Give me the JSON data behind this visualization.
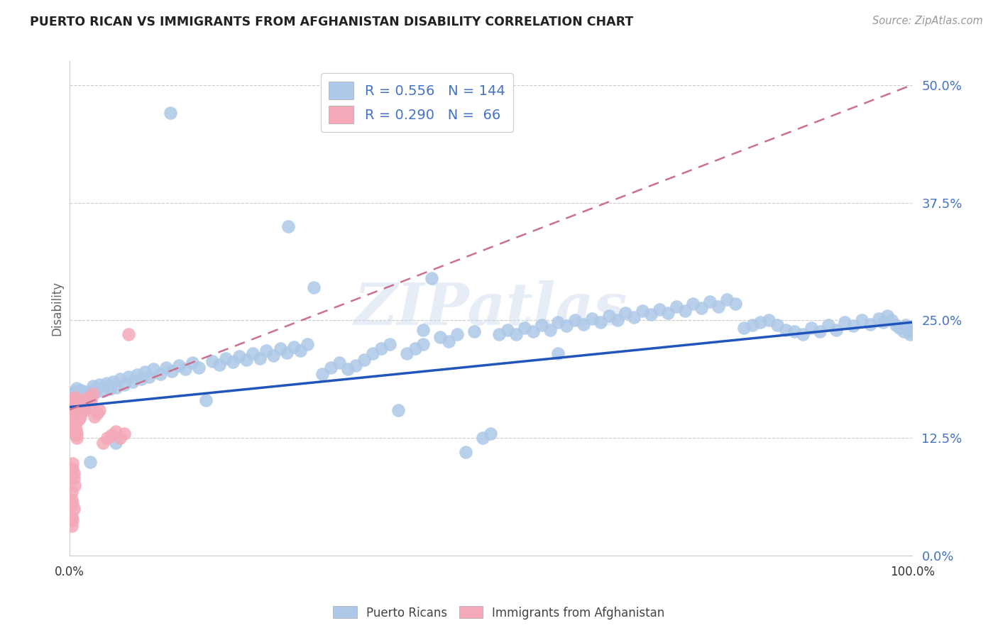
{
  "title": "PUERTO RICAN VS IMMIGRANTS FROM AFGHANISTAN DISABILITY CORRELATION CHART",
  "source": "Source: ZipAtlas.com",
  "ylabel": "Disability",
  "blue_R": 0.556,
  "blue_N": 144,
  "pink_R": 0.29,
  "pink_N": 66,
  "blue_color": "#adc8e8",
  "pink_color": "#f4a8b8",
  "blue_line_color": "#2255bb",
  "pink_line_color": "#cc7090",
  "watermark_text": "ZIPatlas",
  "background_color": "#ffffff",
  "grid_color": "#cccccc",
  "ytick_color": "#4472c4",
  "title_color": "#222222",
  "source_color": "#999999",
  "ylabel_color": "#666666",
  "xlim": [
    0.0,
    1.0
  ],
  "ylim": [
    0.0,
    0.525
  ],
  "yticks": [
    0.0,
    0.125,
    0.25,
    0.375,
    0.5
  ],
  "ytick_labels": [
    "0.0%",
    "12.5%",
    "25.0%",
    "37.5%",
    "50.0%"
  ],
  "xtick_labels": [
    "0.0%",
    "100.0%"
  ],
  "blue_line_x": [
    0.0,
    1.0
  ],
  "blue_line_y": [
    0.158,
    0.248
  ],
  "pink_line_x": [
    0.0,
    1.0
  ],
  "pink_line_y": [
    0.155,
    0.5
  ],
  "blue_points_x": [
    0.003,
    0.004,
    0.005,
    0.006,
    0.007,
    0.008,
    0.009,
    0.01,
    0.011,
    0.012,
    0.013,
    0.014,
    0.015,
    0.016,
    0.017,
    0.018,
    0.019,
    0.02,
    0.022,
    0.024,
    0.026,
    0.028,
    0.03,
    0.033,
    0.036,
    0.04,
    0.044,
    0.048,
    0.052,
    0.056,
    0.06,
    0.065,
    0.07,
    0.075,
    0.08,
    0.085,
    0.09,
    0.095,
    0.1,
    0.108,
    0.115,
    0.122,
    0.13,
    0.138,
    0.146,
    0.154,
    0.162,
    0.17,
    0.178,
    0.186,
    0.194,
    0.202,
    0.21,
    0.218,
    0.226,
    0.234,
    0.242,
    0.25,
    0.258,
    0.266,
    0.274,
    0.282,
    0.29,
    0.3,
    0.31,
    0.32,
    0.33,
    0.34,
    0.35,
    0.36,
    0.37,
    0.38,
    0.39,
    0.4,
    0.41,
    0.42,
    0.43,
    0.44,
    0.45,
    0.46,
    0.47,
    0.48,
    0.49,
    0.5,
    0.51,
    0.52,
    0.53,
    0.54,
    0.55,
    0.56,
    0.57,
    0.58,
    0.59,
    0.6,
    0.61,
    0.62,
    0.63,
    0.64,
    0.65,
    0.66,
    0.67,
    0.68,
    0.69,
    0.7,
    0.71,
    0.72,
    0.73,
    0.74,
    0.75,
    0.76,
    0.77,
    0.78,
    0.79,
    0.8,
    0.81,
    0.82,
    0.83,
    0.84,
    0.85,
    0.86,
    0.87,
    0.88,
    0.89,
    0.9,
    0.91,
    0.92,
    0.93,
    0.94,
    0.95,
    0.96,
    0.965,
    0.97,
    0.975,
    0.98,
    0.985,
    0.99,
    0.992,
    0.994,
    0.996,
    0.997,
    0.025,
    0.055,
    0.12,
    0.26,
    0.42,
    0.58
  ],
  "blue_points_y": [
    0.168,
    0.172,
    0.165,
    0.17,
    0.175,
    0.162,
    0.178,
    0.155,
    0.167,
    0.173,
    0.16,
    0.176,
    0.165,
    0.171,
    0.158,
    0.174,
    0.163,
    0.169,
    0.172,
    0.175,
    0.168,
    0.18,
    0.173,
    0.178,
    0.182,
    0.175,
    0.183,
    0.177,
    0.185,
    0.179,
    0.188,
    0.182,
    0.19,
    0.185,
    0.192,
    0.188,
    0.195,
    0.19,
    0.198,
    0.193,
    0.2,
    0.196,
    0.202,
    0.198,
    0.205,
    0.2,
    0.165,
    0.207,
    0.203,
    0.21,
    0.206,
    0.212,
    0.208,
    0.215,
    0.21,
    0.218,
    0.213,
    0.22,
    0.216,
    0.222,
    0.218,
    0.225,
    0.285,
    0.193,
    0.2,
    0.205,
    0.198,
    0.202,
    0.208,
    0.215,
    0.22,
    0.225,
    0.155,
    0.215,
    0.22,
    0.225,
    0.295,
    0.232,
    0.228,
    0.235,
    0.11,
    0.238,
    0.125,
    0.13,
    0.235,
    0.24,
    0.235,
    0.242,
    0.238,
    0.245,
    0.24,
    0.248,
    0.244,
    0.25,
    0.246,
    0.252,
    0.248,
    0.255,
    0.25,
    0.258,
    0.253,
    0.26,
    0.256,
    0.262,
    0.258,
    0.265,
    0.26,
    0.268,
    0.263,
    0.27,
    0.265,
    0.272,
    0.268,
    0.242,
    0.245,
    0.248,
    0.25,
    0.245,
    0.24,
    0.238,
    0.235,
    0.242,
    0.238,
    0.245,
    0.24,
    0.248,
    0.244,
    0.25,
    0.246,
    0.252,
    0.248,
    0.255,
    0.25,
    0.245,
    0.242,
    0.238,
    0.245,
    0.242,
    0.238,
    0.235,
    0.1,
    0.12,
    0.47,
    0.35,
    0.24,
    0.215
  ],
  "pink_points_x": [
    0.002,
    0.003,
    0.003,
    0.004,
    0.004,
    0.005,
    0.005,
    0.005,
    0.006,
    0.006,
    0.007,
    0.007,
    0.008,
    0.008,
    0.009,
    0.009,
    0.01,
    0.01,
    0.01,
    0.011,
    0.011,
    0.012,
    0.012,
    0.013,
    0.014,
    0.015,
    0.016,
    0.017,
    0.018,
    0.019,
    0.02,
    0.022,
    0.024,
    0.026,
    0.028,
    0.03,
    0.033,
    0.036,
    0.04,
    0.045,
    0.05,
    0.055,
    0.06,
    0.065,
    0.07,
    0.005,
    0.006,
    0.007,
    0.008,
    0.009,
    0.004,
    0.004,
    0.005,
    0.005,
    0.006,
    0.003,
    0.003,
    0.004,
    0.005,
    0.003,
    0.004,
    0.003,
    0.006,
    0.007,
    0.008,
    0.009
  ],
  "pink_points_y": [
    0.158,
    0.155,
    0.162,
    0.148,
    0.165,
    0.152,
    0.16,
    0.145,
    0.158,
    0.168,
    0.15,
    0.162,
    0.145,
    0.158,
    0.152,
    0.165,
    0.148,
    0.155,
    0.162,
    0.145,
    0.158,
    0.152,
    0.165,
    0.148,
    0.155,
    0.162,
    0.158,
    0.165,
    0.155,
    0.16,
    0.162,
    0.168,
    0.158,
    0.165,
    0.172,
    0.148,
    0.152,
    0.155,
    0.12,
    0.125,
    0.128,
    0.132,
    0.125,
    0.13,
    0.235,
    0.138,
    0.142,
    0.132,
    0.128,
    0.125,
    0.098,
    0.092,
    0.088,
    0.082,
    0.075,
    0.068,
    0.06,
    0.055,
    0.05,
    0.042,
    0.038,
    0.032,
    0.145,
    0.14,
    0.135,
    0.13
  ]
}
